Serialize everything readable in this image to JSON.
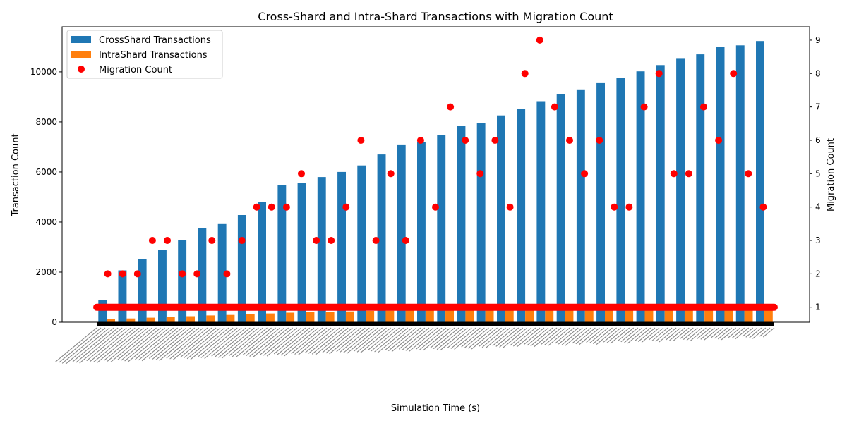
{
  "chart_data": {
    "type": "bar",
    "title": "Cross-Shard and Intra-Shard Transactions with Migration Count",
    "xlabel": "Simulation Time (s)",
    "ylabel": "Transaction Count",
    "y2label": "Migration Count",
    "ylim": [
      0,
      11800
    ],
    "y2lim": [
      0.55,
      9.4
    ],
    "yticks": [
      0,
      2000,
      4000,
      6000,
      8000,
      10000
    ],
    "y2ticks": [
      1,
      2,
      3,
      4,
      5,
      6,
      7,
      8,
      9
    ],
    "grid": false,
    "legend_position": "upper-left",
    "colors": {
      "cross": "#1f77b4",
      "intra": "#ff7f0e",
      "migration": "#ff0000"
    },
    "x_tick_labels_illegible": true,
    "series": [
      {
        "name": "CrossShard Transactions",
        "type": "bar",
        "values": [
          900,
          2070,
          2520,
          2900,
          3270,
          3750,
          3920,
          4280,
          4800,
          5480,
          5560,
          5800,
          6000,
          6260,
          6700,
          7100,
          7200,
          7470,
          7830,
          7960,
          8260,
          8520,
          8830,
          9100,
          9300,
          9550,
          9760,
          10020,
          10270,
          10550,
          10700,
          10990,
          11060,
          11230
        ]
      },
      {
        "name": "IntraShard Transactions",
        "type": "bar",
        "values": [
          120,
          150,
          180,
          210,
          240,
          270,
          290,
          310,
          350,
          380,
          400,
          420,
          430,
          450,
          460,
          480,
          490,
          500,
          510,
          520,
          540,
          560,
          570,
          580,
          590,
          600,
          610,
          630,
          640,
          650,
          670,
          700,
          710,
          720
        ]
      },
      {
        "name": "Migration Count",
        "type": "scatter",
        "values": [
          2,
          2,
          2,
          3,
          3,
          2,
          2,
          3,
          2,
          3,
          4,
          4,
          4,
          5,
          3,
          3,
          4,
          6,
          3,
          5,
          3,
          6,
          4,
          7,
          6,
          5,
          6,
          4,
          8,
          9,
          7,
          6,
          5,
          6,
          4,
          4,
          7,
          8,
          5,
          5,
          7,
          6,
          8,
          5,
          4
        ]
      }
    ]
  }
}
